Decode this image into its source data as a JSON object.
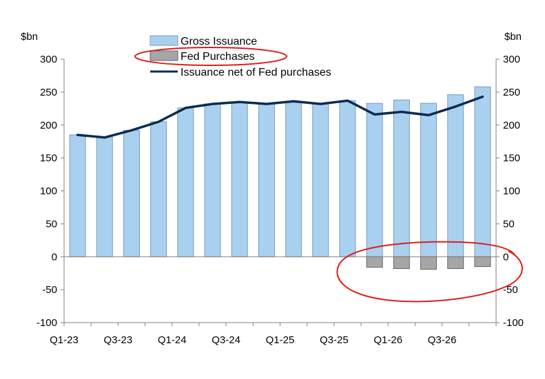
{
  "chart_data": {
    "type": "bar",
    "categories": [
      "Q1-23",
      "Q2-23",
      "Q3-23",
      "Q4-23",
      "Q1-24",
      "Q2-24",
      "Q3-24",
      "Q4-24",
      "Q1-25",
      "Q2-25",
      "Q3-25",
      "Q4-25",
      "Q1-26",
      "Q2-26",
      "Q3-26",
      "Q4-26"
    ],
    "x_tick_labels": [
      "Q1-23",
      "Q3-23",
      "Q1-24",
      "Q3-24",
      "Q1-25",
      "Q3-25",
      "Q1-26",
      "Q3-26"
    ],
    "series": [
      {
        "name": "Gross Issuance",
        "kind": "bar",
        "color": "#a9d0ef",
        "values": [
          185,
          182,
          192,
          205,
          226,
          232,
          235,
          232,
          236,
          232,
          237,
          233,
          238,
          233,
          246,
          258
        ]
      },
      {
        "name": "Fed Purchases",
        "kind": "bar",
        "color": "#a6a6a6",
        "values": [
          0,
          0,
          0,
          0,
          0,
          0,
          0,
          0,
          0,
          0,
          0,
          -16,
          -18,
          -19,
          -18,
          -15
        ]
      },
      {
        "name": "Issuance net of Fed purchases",
        "kind": "line",
        "color": "#0d2b4f",
        "values": [
          185,
          181,
          192,
          205,
          226,
          232,
          235,
          232,
          236,
          232,
          237,
          216,
          220,
          215,
          228,
          243
        ]
      }
    ],
    "ylim": [
      -100,
      300
    ],
    "yticks": [
      -100,
      -50,
      0,
      50,
      100,
      150,
      200,
      250,
      300
    ],
    "left_unit_label": "$bn",
    "right_unit_label": "$bn",
    "grid": false,
    "legend_position": "top-left",
    "annotations": {
      "highlight_color": "#e01b1b"
    }
  }
}
